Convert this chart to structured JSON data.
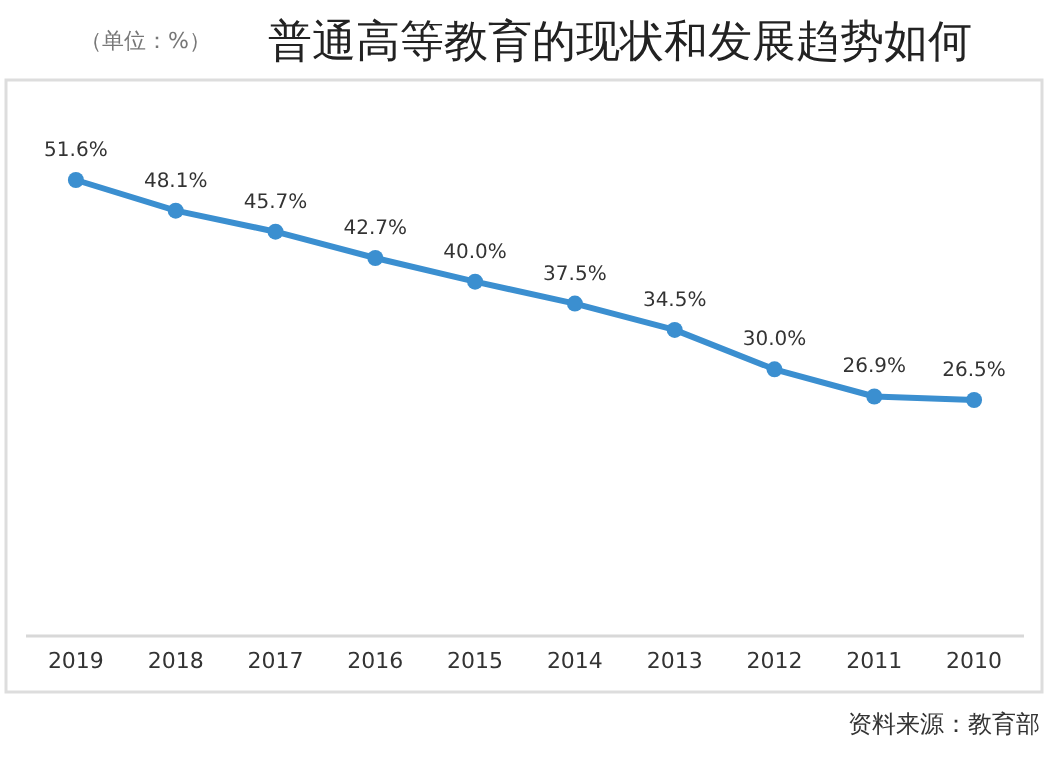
{
  "chart_data": {
    "type": "line",
    "title": "普通高等教育的现状和发展趋势如何",
    "annotations": [
      "（单位：%）",
      "资料来源：教育部"
    ],
    "categories": [
      "2019",
      "2018",
      "2017",
      "2016",
      "2015",
      "2014",
      "2013",
      "2012",
      "2011",
      "2010"
    ],
    "series": [
      {
        "color": "#3b8fd0",
        "values": [
          51.6,
          48.1,
          45.7,
          42.7,
          40.0,
          37.5,
          34.5,
          30.0,
          26.9,
          26.5
        ],
        "value_labels": [
          "51.6%",
          "48.1%",
          "45.7%",
          "42.7%",
          "40.0%",
          "37.5%",
          "34.5%",
          "30.0%",
          "26.9%",
          "26.5%"
        ]
      }
    ],
    "marker": "circle",
    "line_style": "solid"
  }
}
